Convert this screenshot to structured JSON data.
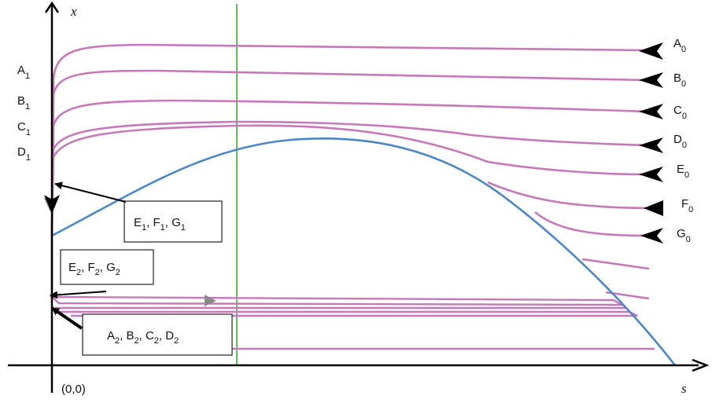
{
  "axes": {
    "x_axis_label": "s",
    "y_axis_label": "x",
    "origin_label": "(0,0)"
  },
  "start_labels": [
    {
      "letter": "A",
      "sub": "0"
    },
    {
      "letter": "B",
      "sub": "0"
    },
    {
      "letter": "C",
      "sub": "0"
    },
    {
      "letter": "D",
      "sub": "0"
    },
    {
      "letter": "E",
      "sub": "0"
    },
    {
      "letter": "F",
      "sub": "0"
    },
    {
      "letter": "G",
      "sub": "0"
    }
  ],
  "end_labels": [
    {
      "letter": "A",
      "sub": "1"
    },
    {
      "letter": "B",
      "sub": "1"
    },
    {
      "letter": "C",
      "sub": "1"
    },
    {
      "letter": "D",
      "sub": "1"
    }
  ],
  "boxes": {
    "efg1": {
      "parts": [
        {
          "letter": "E",
          "sub": "1"
        },
        {
          "letter": ", F",
          "sub": "1"
        },
        {
          "letter": ", G",
          "sub": "1"
        }
      ]
    },
    "efg2": {
      "parts": [
        {
          "letter": "E",
          "sub": "2"
        },
        {
          "letter": ", F",
          "sub": "2"
        },
        {
          "letter": ", G",
          "sub": "2"
        }
      ]
    },
    "abcd2": {
      "parts": [
        {
          "letter": "A",
          "sub": "2"
        },
        {
          "letter": ", B",
          "sub": "2"
        },
        {
          "letter": ", C",
          "sub": "2"
        },
        {
          "letter": ", D",
          "sub": "2"
        }
      ]
    }
  },
  "colors": {
    "trajectory": "#c678b8",
    "nullcline": "#4a86c8",
    "vertical_line": "#5cbf5a",
    "axis": "#000000"
  }
}
